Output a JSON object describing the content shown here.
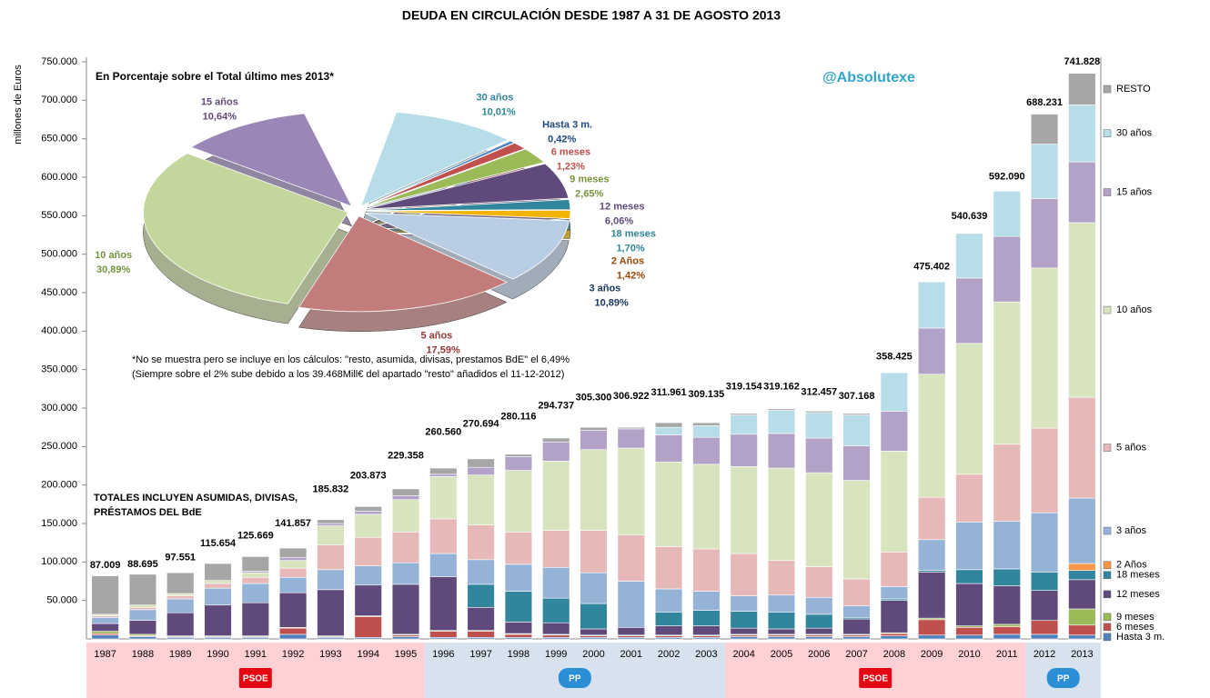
{
  "chart_data": [
    {
      "type": "bar",
      "title": "DEUDA EN CIRCULACIÓN DESDE 1987 A 31 DE AGOSTO 2013",
      "ylabel": "millones de Euros",
      "categories": [
        "1987",
        "1988",
        "1989",
        "1990",
        "1991",
        "1992",
        "1993",
        "1994",
        "1995",
        "1996",
        "1997",
        "1998",
        "1999",
        "2000",
        "2001",
        "2002",
        "2003",
        "2004",
        "2005",
        "2006",
        "2007",
        "2008",
        "2009",
        "2010",
        "2011",
        "2012",
        "2013"
      ],
      "series": [
        {
          "name": "Hasta 3 m.",
          "color": "#4f81bd",
          "values": [
            5000,
            3000,
            2000,
            2000,
            2000,
            6000,
            2000,
            2000,
            3000,
            2000,
            2000,
            2000,
            2000,
            2000,
            2000,
            2000,
            2000,
            3000,
            3000,
            3000,
            3000,
            4000,
            5000,
            5000,
            6000,
            6000,
            5000
          ]
        },
        {
          "name": "6 meses",
          "color": "#c0504d",
          "values": [
            2000,
            1000,
            1000,
            1000,
            1000,
            8000,
            1000,
            27000,
            2000,
            8000,
            8000,
            4000,
            3000,
            2000,
            2000,
            2000,
            2000,
            2000,
            2000,
            2000,
            2000,
            3000,
            20000,
            10000,
            10000,
            18000,
            13000
          ]
        },
        {
          "name": "9 meses",
          "color": "#9bbb59",
          "values": [
            3000,
            2000,
            1000,
            1000,
            1000,
            1000,
            1000,
            1000,
            1000,
            1000,
            1000,
            1000,
            1000,
            1000,
            1000,
            1000,
            1000,
            1000,
            1000,
            1000,
            1000,
            1000,
            2000,
            2000,
            3000,
            0,
            21000
          ]
        },
        {
          "name": "12 meses",
          "color": "#604a7b",
          "values": [
            10000,
            18000,
            30000,
            40000,
            43000,
            45000,
            60000,
            40000,
            65000,
            70000,
            30000,
            15000,
            15000,
            8000,
            10000,
            12000,
            12000,
            8000,
            7000,
            8000,
            20000,
            42000,
            60000,
            55000,
            50000,
            39000,
            38000
          ]
        },
        {
          "name": "18 meses",
          "color": "#31859c",
          "values": [
            0,
            0,
            0,
            0,
            0,
            0,
            0,
            0,
            0,
            0,
            30000,
            40000,
            32000,
            33000,
            0,
            18000,
            20000,
            22000,
            22000,
            18000,
            2000,
            2000,
            2000,
            18000,
            22000,
            24000,
            12000
          ]
        },
        {
          "name": "2 Años",
          "color": "#f79646",
          "values": [
            0,
            0,
            0,
            0,
            0,
            0,
            0,
            0,
            0,
            0,
            0,
            0,
            0,
            0,
            0,
            0,
            0,
            0,
            0,
            0,
            0,
            0,
            0,
            0,
            0,
            0,
            9000
          ]
        },
        {
          "name": "3 años",
          "color": "#95b3d7",
          "values": [
            8000,
            14000,
            18000,
            22000,
            25000,
            20000,
            26000,
            25000,
            28000,
            30000,
            32000,
            35000,
            40000,
            40000,
            60000,
            30000,
            25000,
            20000,
            22000,
            22000,
            15000,
            16000,
            40000,
            62000,
            62000,
            77000,
            85000
          ]
        },
        {
          "name": "5 años",
          "color": "#e6b9b8",
          "values": [
            2000,
            3000,
            4000,
            6000,
            8000,
            12000,
            32000,
            37000,
            40000,
            45000,
            45000,
            42000,
            48000,
            55000,
            60000,
            55000,
            55000,
            55000,
            45000,
            40000,
            35000,
            45000,
            55000,
            62000,
            100000,
            110000,
            131000
          ]
        },
        {
          "name": "10 años",
          "color": "#d7e4bd",
          "values": [
            2000,
            3000,
            3000,
            4000,
            6000,
            10000,
            25000,
            30000,
            42000,
            55000,
            65000,
            80000,
            90000,
            105000,
            113000,
            110000,
            110000,
            113000,
            120000,
            122000,
            128000,
            131000,
            160000,
            170000,
            185000,
            208000,
            227000
          ]
        },
        {
          "name": "15 años",
          "color": "#b3a2c7",
          "values": [
            0,
            0,
            0,
            0,
            2000,
            4000,
            3000,
            4000,
            5000,
            3000,
            10000,
            18000,
            25000,
            25000,
            25000,
            35000,
            35000,
            42000,
            45000,
            45000,
            45000,
            52000,
            60000,
            85000,
            85000,
            90000,
            79000
          ]
        },
        {
          "name": "30 años",
          "color": "#b7dee8",
          "values": [
            0,
            0,
            0,
            0,
            0,
            0,
            0,
            0,
            0,
            0,
            0,
            0,
            0,
            0,
            0,
            10000,
            15000,
            25000,
            30000,
            33000,
            40000,
            50000,
            60000,
            58000,
            59000,
            71000,
            74000
          ]
        },
        {
          "name": "RESTO",
          "color": "#a6a6a6",
          "values": [
            50000,
            40000,
            27000,
            22000,
            19000,
            12000,
            5000,
            6000,
            9000,
            8000,
            11000,
            3000,
            5000,
            4000,
            2000,
            6000,
            4000,
            2000,
            2000,
            2000,
            2000,
            0,
            0,
            0,
            0,
            39000,
            41000
          ]
        }
      ],
      "totals": [
        87009,
        88695,
        97551,
        115654,
        125669,
        141857,
        185832,
        203873,
        229358,
        260560,
        270694,
        280116,
        294737,
        305300,
        306922,
        311961,
        309135,
        319154,
        319162,
        312457,
        307168,
        358425,
        475402,
        540639,
        592090,
        688231,
        741828
      ],
      "total_labels": [
        "87.009",
        "88.695",
        "97.551",
        "115.654",
        "125.669",
        "141.857",
        "185.832",
        "203.873",
        "229.358",
        "260.560",
        "270.694",
        "280.116",
        "294.737",
        "305.300",
        "306.922",
        "311.961",
        "309.135",
        "319.154",
        "319.162",
        "312.457",
        "307.168",
        "358.425",
        "475.402",
        "540.639",
        "592.090",
        "688.231",
        "741.828"
      ],
      "ylim": [
        0,
        750000
      ],
      "yticks": [
        {
          "value": 50000,
          "label": "50.000"
        },
        {
          "value": 100000,
          "label": "100.000"
        },
        {
          "value": 150000,
          "label": "150.000"
        },
        {
          "value": 200000,
          "label": "200.000"
        },
        {
          "value": 250000,
          "label": "250.000"
        },
        {
          "value": 300000,
          "label": "300.000"
        },
        {
          "value": 350000,
          "label": "350.000"
        },
        {
          "value": 400000,
          "label": "400.000"
        },
        {
          "value": 450000,
          "label": "450.000"
        },
        {
          "value": 500000,
          "label": "500.000"
        },
        {
          "value": 550000,
          "label": "550.000"
        },
        {
          "value": 600000,
          "label": "600.000"
        },
        {
          "value": 650000,
          "label": "650.000"
        },
        {
          "value": 700000,
          "label": "700.000"
        },
        {
          "value": 750000,
          "label": "750.000"
        }
      ],
      "grid": false,
      "legend": "right",
      "annotations": {
        "totals_note": [
          "TOTALES INCLUYEN ASUMIDAS, DIVISAS,",
          "PRÉSTAMOS  DEL BdE"
        ],
        "author": "@Absolutexe"
      },
      "periods": [
        {
          "label": "PSOE",
          "start": "1987",
          "end": "1995",
          "color": "#ffd0d4"
        },
        {
          "label": "PP",
          "start": "1996",
          "end": "2003",
          "color": "#d7e2ee"
        },
        {
          "label": "PSOE",
          "start": "2004",
          "end": "2011",
          "color": "#ffd0d4"
        },
        {
          "label": "PP",
          "start": "2012",
          "end": "2013",
          "color": "#d7e2ee"
        }
      ]
    },
    {
      "type": "pie",
      "title": "En Porcentaje sobre el Total último mes 2013*",
      "labels": [
        "30 años",
        "Hasta 3 m.",
        "6 meses",
        "9 meses",
        "12 meses",
        "18 meses",
        "2 Años",
        "3 años",
        "5 años",
        "10 años",
        "15 años"
      ],
      "values": [
        10.01,
        0.42,
        1.23,
        2.65,
        6.06,
        1.7,
        1.42,
        10.89,
        17.59,
        30.89,
        10.64
      ],
      "value_labels": [
        "10,01%",
        "0,42%",
        "1,23%",
        "2,65%",
        "6,06%",
        "1,70%",
        "1,42%",
        "10,89%",
        "17,59%",
        "30,89%",
        "10,64%"
      ],
      "colors": [
        "#b7dee8",
        "#4f81bd",
        "#c0504d",
        "#9bbb59",
        "#604a7b",
        "#31859c",
        "#f2b400",
        "#b9cde5",
        "#c27c7b",
        "#c3d69b",
        "#9b86b8"
      ],
      "label_colors": [
        "#31859c",
        "#1f497d",
        "#c0504d",
        "#77933c",
        "#604a7b",
        "#31859c",
        "#984807",
        "#17375e",
        "#953735",
        "#77933c",
        "#604a7b"
      ],
      "notes": [
        "*No se muestra pero se incluye en los cálculos: \"resto, asumida, divisas, prestamos BdE\" el 6,49%",
        "(Siempre sobre el 2% sube debido a los 39.468Mill€ del apartado \"resto\" añadidos el 11-12-2012)"
      ]
    }
  ]
}
